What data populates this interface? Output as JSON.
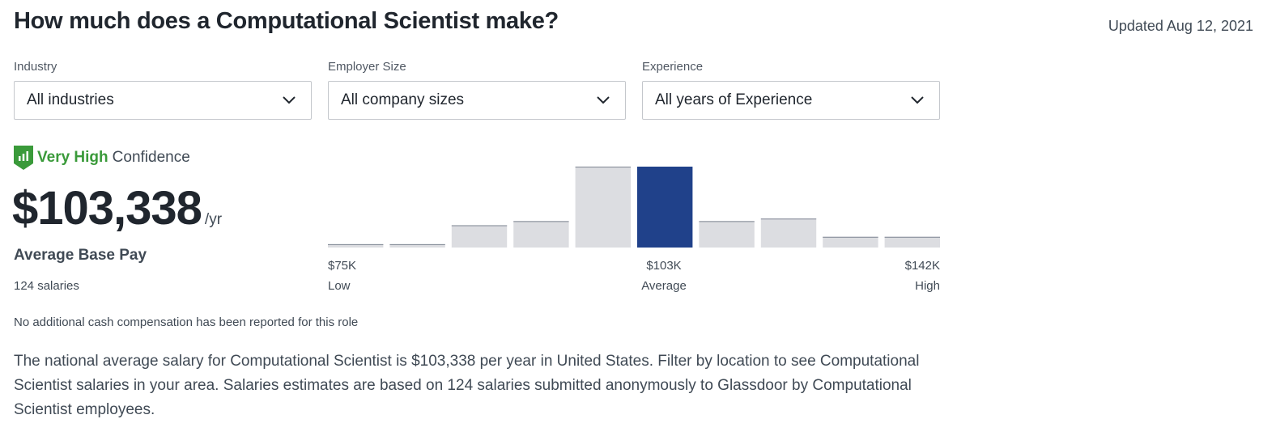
{
  "header": {
    "title": "How much does a Computational Scientist make?",
    "updated": "Updated Aug 12, 2021"
  },
  "filters": [
    {
      "label": "Industry",
      "value": "All industries"
    },
    {
      "label": "Employer Size",
      "value": "All company sizes"
    },
    {
      "label": "Experience",
      "value": "All years of Experience"
    }
  ],
  "confidence": {
    "level": "Very High",
    "text": "Confidence",
    "icon": "confidence-shield-icon",
    "color": "#3a9a3a"
  },
  "pay": {
    "amount": "$103,338",
    "period": "/yr",
    "label": "Average Base Pay",
    "count": "124 salaries",
    "no_cash_note": "No additional cash compensation has been reported for this role"
  },
  "chart_data": {
    "type": "bar",
    "values": [
      4,
      4,
      27,
      32,
      98,
      98,
      32,
      35,
      13,
      13
    ],
    "highlight_index": 5,
    "colors": {
      "bar": "#dcdde1",
      "highlight": "#20418a",
      "bar_top": "#7d8491"
    },
    "low": {
      "value": "$75K",
      "label": "Low"
    },
    "average": {
      "value": "$103K",
      "label": "Average"
    },
    "high": {
      "value": "$142K",
      "label": "High"
    }
  },
  "description": "The national average salary for Computational Scientist is $103,338 per year in United States. Filter by location to see Computational Scientist salaries in your area. Salaries estimates are based on 124 salaries submitted anonymously to Glassdoor by Computational Scientist employees."
}
